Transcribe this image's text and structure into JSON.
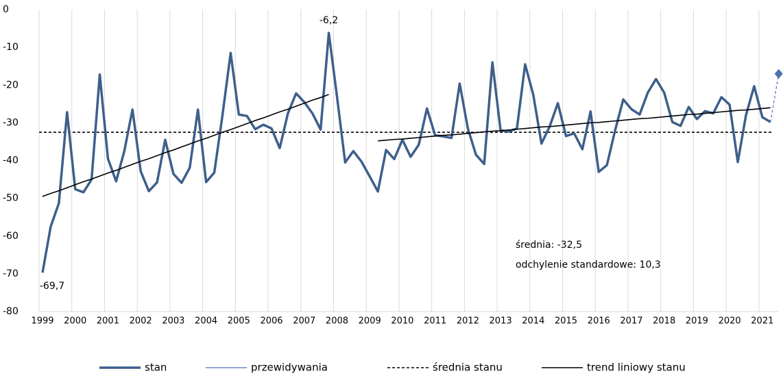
{
  "chart_data": {
    "type": "line",
    "categories": [
      "1999",
      null,
      null,
      null,
      "2000",
      null,
      null,
      null,
      "2001",
      null,
      null,
      null,
      "2002",
      null,
      null,
      null,
      "2003",
      null,
      null,
      null,
      "2004",
      null,
      null,
      null,
      "2005",
      null,
      null,
      null,
      "2006",
      null,
      null,
      null,
      "2007",
      null,
      null,
      null,
      "2008",
      null,
      null,
      null,
      "2009",
      null,
      null,
      null,
      "2010",
      null,
      null,
      null,
      "2011",
      null,
      null,
      null,
      "2012",
      null,
      null,
      null,
      "2013",
      null,
      null,
      null,
      "2014",
      null,
      null,
      null,
      "2015",
      null,
      null,
      null,
      "2016",
      null,
      null,
      null,
      "2017",
      null,
      null,
      null,
      "2018",
      null,
      null,
      null,
      "2019",
      null,
      null,
      null,
      "2020",
      null,
      null,
      null,
      "2021",
      null,
      null
    ],
    "series": [
      {
        "name": "stan",
        "color": "#3e5f8a",
        "width": 3.5,
        "values": [
          -69.7,
          -57.5,
          -51.3,
          -27.2,
          -47.6,
          -48.4,
          -45.0,
          -17.2,
          -39.5,
          -45.5,
          -37.5,
          -26.5,
          -42.8,
          -48.1,
          -45.8,
          -34.5,
          -43.5,
          -45.9,
          -41.9,
          -26.5,
          -45.7,
          -43.2,
          -28.0,
          -11.5,
          -27.8,
          -28.2,
          -31.7,
          -30.5,
          -31.5,
          -36.7,
          -27.5,
          -22.2,
          -24.5,
          -27.5,
          -31.8,
          -6.2,
          -23.0,
          -40.5,
          -37.5,
          -40.3,
          -44.2,
          -48.2,
          -37.2,
          -39.6,
          -34.5,
          -39.0,
          -35.8,
          -26.2,
          -33.3,
          -33.6,
          -34.0,
          -19.6,
          -31.5,
          -38.5,
          -40.9,
          -14.0,
          -32.0,
          -32.3,
          -31.5,
          -14.5,
          -22.6,
          -35.5,
          -31.0,
          -24.8,
          -33.5,
          -32.8,
          -37.0,
          -27.0,
          -43.0,
          -41.2,
          -32.0,
          -23.8,
          -26.4,
          -27.8,
          -22.0,
          -18.4,
          -22.0,
          -29.8,
          -30.8,
          -25.8,
          -29.0,
          -26.9,
          -27.5,
          -23.2,
          -25.2,
          -40.4,
          -28.0,
          -20.3,
          -28.5,
          -29.8,
          null
        ],
        "value_labels": {
          "0": "-69,7",
          "35": "-6,2"
        }
      },
      {
        "name": "przewidywania",
        "color": "#4a72b0",
        "width": 1.2,
        "dashed": true,
        "marker": "diamond",
        "values": [
          null,
          null,
          null,
          null,
          null,
          null,
          null,
          null,
          null,
          null,
          null,
          null,
          null,
          null,
          null,
          null,
          null,
          null,
          null,
          null,
          null,
          null,
          null,
          null,
          null,
          null,
          null,
          null,
          null,
          null,
          null,
          null,
          null,
          null,
          null,
          null,
          null,
          null,
          null,
          null,
          null,
          null,
          null,
          null,
          null,
          null,
          null,
          null,
          null,
          null,
          null,
          null,
          null,
          null,
          null,
          null,
          null,
          null,
          null,
          null,
          null,
          null,
          null,
          null,
          null,
          null,
          null,
          null,
          null,
          null,
          null,
          null,
          null,
          null,
          null,
          null,
          null,
          null,
          null,
          null,
          null,
          null,
          null,
          null,
          null,
          null,
          null,
          null,
          null,
          -29.8,
          -17.0
        ]
      },
      {
        "name": "trend liniowy stanu",
        "color": "#000000",
        "width": 1.6,
        "values": [
          -49.5,
          -48.7,
          -48.0,
          -47.2,
          -46.4,
          -45.6,
          -44.9,
          -44.1,
          -43.3,
          -42.6,
          -41.8,
          -41.0,
          -40.2,
          -39.5,
          -38.7,
          -37.9,
          -37.2,
          -36.4,
          -35.6,
          -34.8,
          -34.1,
          -33.3,
          -32.5,
          -31.8,
          -31.0,
          -30.2,
          -29.4,
          -28.7,
          -27.9,
          -27.1,
          -26.4,
          -25.6,
          -24.8,
          -24.0,
          -23.3,
          -22.5,
          null,
          null,
          null,
          null,
          null,
          -34.8,
          -34.6,
          -34.4,
          -34.3,
          -34.1,
          -33.9,
          -33.7,
          -33.5,
          -33.3,
          -33.2,
          -33.0,
          -32.8,
          -32.6,
          -32.4,
          -32.2,
          -32.1,
          -31.9,
          -31.7,
          -31.5,
          -31.3,
          -31.1,
          -31.0,
          -30.8,
          -30.6,
          -30.4,
          -30.2,
          -30.0,
          -29.9,
          -29.7,
          -29.5,
          -29.3,
          -29.1,
          -28.9,
          -28.8,
          -28.6,
          -28.4,
          -28.2,
          -28.0,
          -27.8,
          -27.7,
          -27.5,
          -27.3,
          -27.1,
          -26.9,
          -26.7,
          -26.6,
          -26.4,
          -26.2,
          -26.0,
          null
        ]
      }
    ],
    "reference_line": {
      "name": "średnia stanu",
      "value": -32.5,
      "color": "#000000",
      "dashed": true
    },
    "legend_order": [
      "stan",
      "przewidywania",
      "średnia stanu",
      "trend liniowy stanu"
    ],
    "annotations": [
      "średnia: -32,5",
      "odchylenie standardowe: 10,3"
    ],
    "ylim": [
      -80,
      0
    ],
    "yticks": [
      0,
      -10,
      -20,
      -30,
      -40,
      -50,
      -60,
      -70,
      -80
    ],
    "grid": "x",
    "legend": "bottom"
  }
}
